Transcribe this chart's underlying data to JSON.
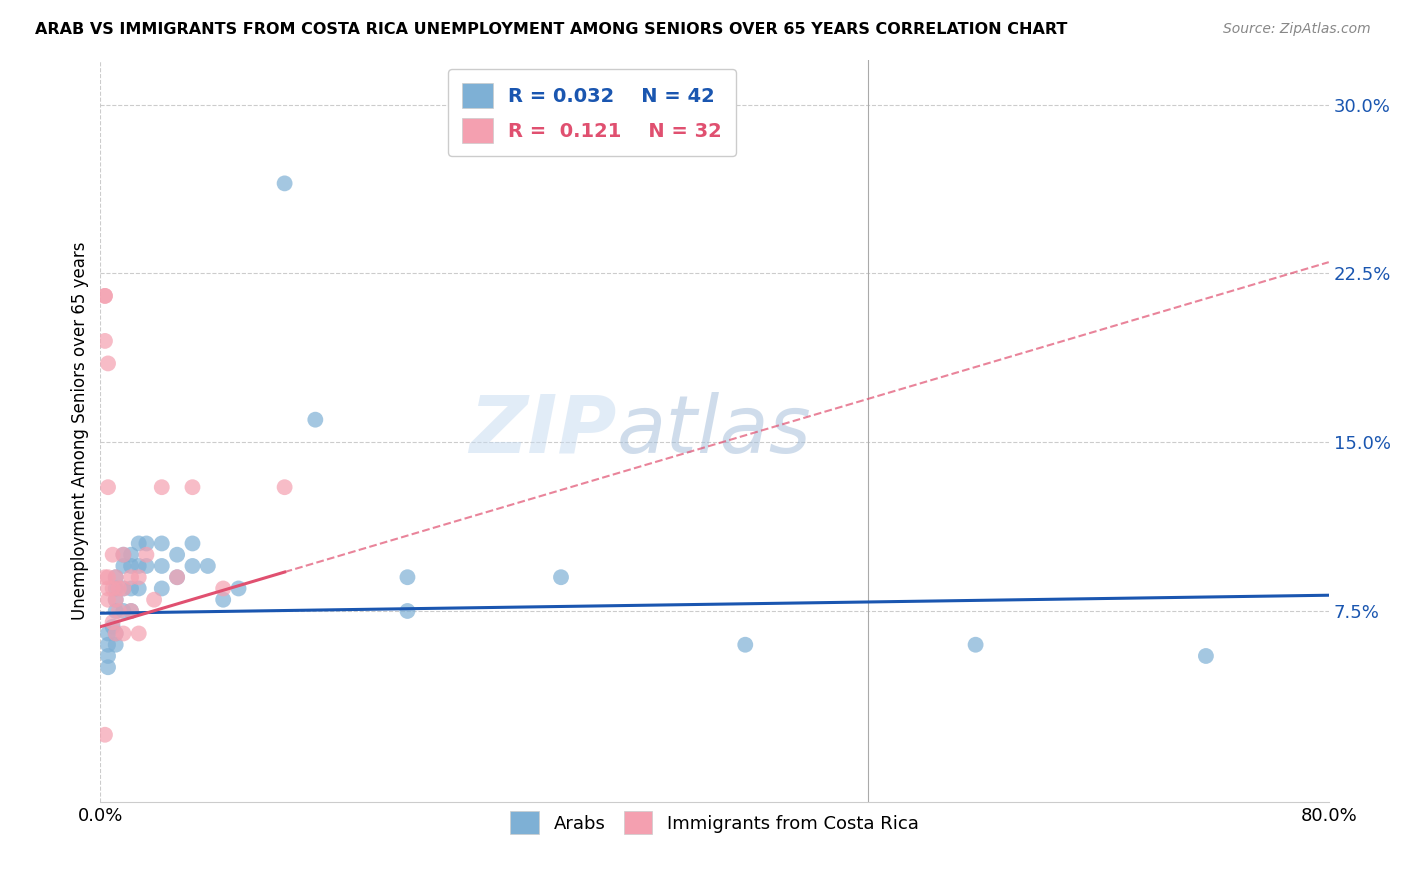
{
  "title": "ARAB VS IMMIGRANTS FROM COSTA RICA UNEMPLOYMENT AMONG SENIORS OVER 65 YEARS CORRELATION CHART",
  "source": "Source: ZipAtlas.com",
  "ylabel": "Unemployment Among Seniors over 65 years",
  "xlim": [
    0.0,
    0.8
  ],
  "ylim": [
    -0.01,
    0.32
  ],
  "yticks": [
    0.0,
    0.075,
    0.15,
    0.225,
    0.3
  ],
  "ytick_labels": [
    "",
    "7.5%",
    "15.0%",
    "22.5%",
    "30.0%"
  ],
  "arab_R": 0.032,
  "arab_N": 42,
  "cr_R": 0.121,
  "cr_N": 32,
  "arab_color": "#7eb0d5",
  "cr_color": "#f4a0b0",
  "arab_line_color": "#1a56b0",
  "cr_line_color": "#e05070",
  "legend_label_arab": "Arabs",
  "legend_label_cr": "Immigrants from Costa Rica",
  "watermark_zip": "ZIP",
  "watermark_atlas": "atlas",
  "arab_x": [
    0.005,
    0.005,
    0.005,
    0.005,
    0.008,
    0.01,
    0.01,
    0.01,
    0.01,
    0.01,
    0.01,
    0.015,
    0.015,
    0.015,
    0.015,
    0.02,
    0.02,
    0.02,
    0.02,
    0.025,
    0.025,
    0.025,
    0.03,
    0.03,
    0.04,
    0.04,
    0.04,
    0.05,
    0.05,
    0.06,
    0.06,
    0.07,
    0.08,
    0.09,
    0.12,
    0.14,
    0.2,
    0.2,
    0.3,
    0.42,
    0.57,
    0.72
  ],
  "arab_y": [
    0.065,
    0.06,
    0.055,
    0.05,
    0.068,
    0.09,
    0.085,
    0.08,
    0.075,
    0.065,
    0.06,
    0.1,
    0.095,
    0.085,
    0.075,
    0.1,
    0.095,
    0.085,
    0.075,
    0.105,
    0.095,
    0.085,
    0.105,
    0.095,
    0.105,
    0.095,
    0.085,
    0.1,
    0.09,
    0.105,
    0.095,
    0.095,
    0.08,
    0.085,
    0.265,
    0.16,
    0.09,
    0.075,
    0.09,
    0.06,
    0.06,
    0.055
  ],
  "cr_x": [
    0.003,
    0.003,
    0.003,
    0.003,
    0.003,
    0.005,
    0.005,
    0.005,
    0.005,
    0.005,
    0.008,
    0.008,
    0.008,
    0.01,
    0.01,
    0.01,
    0.012,
    0.012,
    0.015,
    0.015,
    0.015,
    0.02,
    0.02,
    0.025,
    0.025,
    0.03,
    0.035,
    0.04,
    0.05,
    0.06,
    0.08,
    0.12
  ],
  "cr_y": [
    0.215,
    0.215,
    0.195,
    0.09,
    0.02,
    0.185,
    0.13,
    0.09,
    0.085,
    0.08,
    0.1,
    0.085,
    0.07,
    0.09,
    0.08,
    0.065,
    0.085,
    0.075,
    0.1,
    0.085,
    0.065,
    0.09,
    0.075,
    0.09,
    0.065,
    0.1,
    0.08,
    0.13,
    0.09,
    0.13,
    0.085,
    0.13
  ]
}
